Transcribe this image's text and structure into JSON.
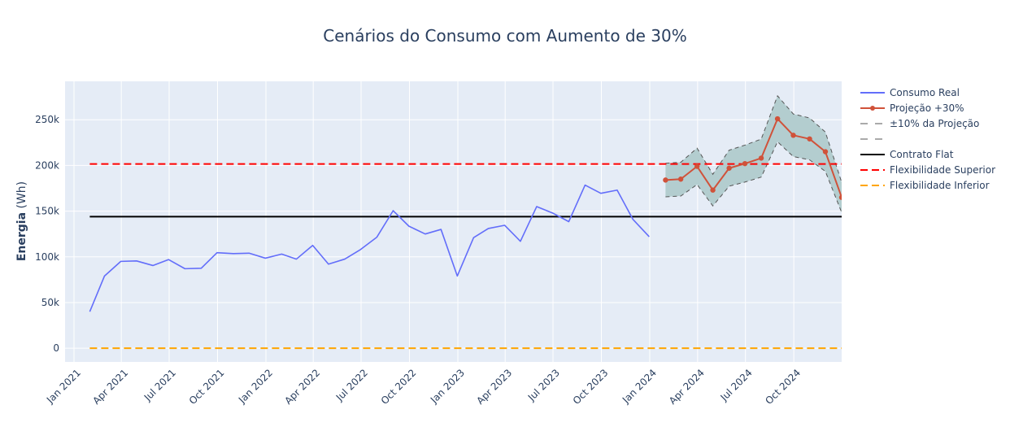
{
  "chart_data": {
    "type": "line",
    "title": "Cenários do Consumo com Aumento de 30%",
    "ylabel_bold": "Energia",
    "ylabel_rest": " (Wh)",
    "xlabel": "",
    "ylim": [
      -15000,
      292000
    ],
    "xlim": [
      "2020-12-15",
      "2024-12-31"
    ],
    "y_ticks": [
      0,
      50000,
      100000,
      150000,
      200000,
      250000
    ],
    "y_tick_labels": [
      "0",
      "50k",
      "100k",
      "150k",
      "200k",
      "250k"
    ],
    "x_ticks": [
      "2021-01-01",
      "2021-04-01",
      "2021-07-01",
      "2021-10-01",
      "2022-01-01",
      "2022-04-01",
      "2022-07-01",
      "2022-10-01",
      "2023-01-01",
      "2023-04-01",
      "2023-07-01",
      "2023-10-01",
      "2024-01-01",
      "2024-04-01",
      "2024-07-01",
      "2024-10-01"
    ],
    "x_tick_labels": [
      "Jan 2021",
      "Apr 2021",
      "Jul 2021",
      "Oct 2021",
      "Jan 2022",
      "Apr 2022",
      "Jul 2022",
      "Oct 2022",
      "Jan 2023",
      "Apr 2023",
      "Jul 2023",
      "Oct 2023",
      "Jan 2024",
      "Apr 2024",
      "Jul 2024",
      "Oct 2024"
    ],
    "grid": true,
    "legend_position": "right",
    "colors": {
      "real": "#636efa",
      "proj": "#d0523a",
      "band_fill": "#b3cdcf",
      "band_edge": "#555555",
      "flat": "#000000",
      "sup": "#ff0000",
      "inf": "#ffa500",
      "plot_bg": "#e5ecf6",
      "grid": "#ffffff",
      "text": "#2a3f5f"
    },
    "series": [
      {
        "name": "Consumo Real",
        "x": [
          "2021-01-31",
          "2021-02-28",
          "2021-03-31",
          "2021-04-30",
          "2021-05-31",
          "2021-06-30",
          "2021-07-31",
          "2021-08-31",
          "2021-09-30",
          "2021-10-31",
          "2021-11-30",
          "2021-12-31",
          "2022-01-31",
          "2022-02-28",
          "2022-03-31",
          "2022-04-30",
          "2022-05-31",
          "2022-06-30",
          "2022-07-31",
          "2022-08-31",
          "2022-09-30",
          "2022-10-31",
          "2022-11-30",
          "2022-12-31",
          "2023-01-31",
          "2023-02-28",
          "2023-03-31",
          "2023-04-30",
          "2023-05-31",
          "2023-06-30",
          "2023-07-31",
          "2023-08-31",
          "2023-09-30",
          "2023-10-31",
          "2023-11-30",
          "2023-12-31"
        ],
        "values": [
          40000,
          79000,
          95000,
          95500,
          90500,
          97000,
          87000,
          87500,
          104500,
          103500,
          104000,
          98500,
          103000,
          97500,
          112500,
          92000,
          97500,
          108000,
          121500,
          150500,
          133500,
          125000,
          130000,
          79000,
          121000,
          131000,
          134500,
          117000,
          155000,
          148000,
          138500,
          178500,
          169500,
          173000,
          141000,
          122000
        ]
      },
      {
        "name": "Projeção +30%",
        "x": [
          "2024-01-31",
          "2024-02-29",
          "2024-03-31",
          "2024-04-30",
          "2024-05-31",
          "2024-06-30",
          "2024-07-31",
          "2024-08-31",
          "2024-09-30",
          "2024-10-31",
          "2024-11-30",
          "2024-12-31"
        ],
        "values": [
          184000,
          185000,
          199000,
          173000,
          197000,
          202000,
          208000,
          251000,
          233000,
          229000,
          215000,
          165000
        ]
      },
      {
        "name": "±10% da Projeção",
        "x": [
          "2024-01-31",
          "2024-02-29",
          "2024-03-31",
          "2024-04-30",
          "2024-05-31",
          "2024-06-30",
          "2024-07-31",
          "2024-08-31",
          "2024-09-30",
          "2024-10-31",
          "2024-11-30",
          "2024-12-31"
        ],
        "upper": [
          202400,
          203500,
          218900,
          190300,
          216700,
          222200,
          228800,
          276100,
          256300,
          251900,
          236500,
          181500
        ],
        "lower": [
          165600,
          166500,
          179100,
          155700,
          177300,
          181800,
          187200,
          225900,
          209700,
          206100,
          193500,
          148500
        ]
      },
      {
        "name": "Contrato Flat",
        "value": 144000
      },
      {
        "name": "Flexibilidade Superior",
        "value": 201600
      },
      {
        "name": "Flexibilidade Inferior",
        "value": 0
      }
    ]
  },
  "legend": {
    "real": "Consumo Real",
    "proj": "Projeção +30%",
    "band": "±10% da Projeção",
    "flat": "Contrato Flat",
    "sup": "Flexibilidade Superior",
    "inf": "Flexibilidade Inferior"
  }
}
